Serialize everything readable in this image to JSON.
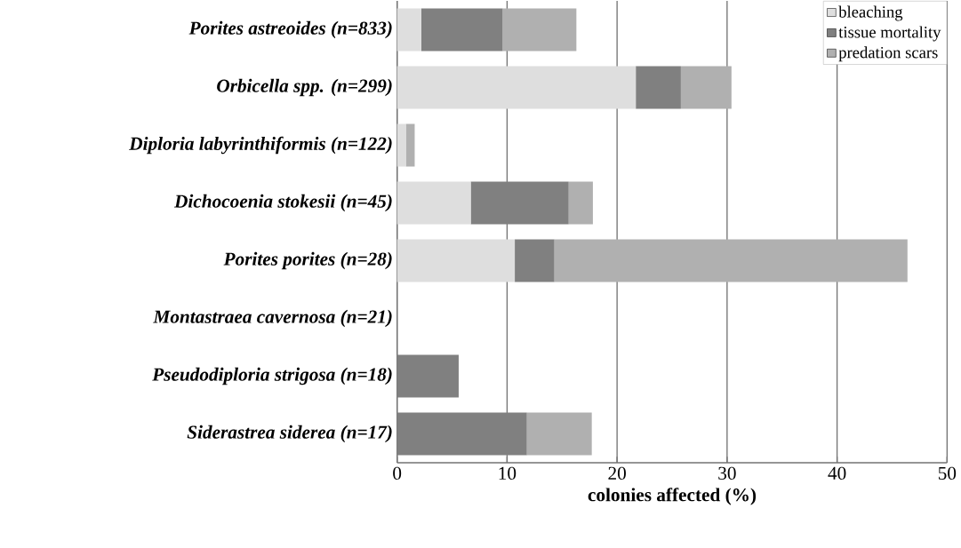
{
  "chart_data": {
    "type": "bar",
    "orientation": "horizontal",
    "stacked": true,
    "categories": [
      "Porites astreoides (n=833)",
      "Orbicella spp. (n=299)",
      "Diploria labyrinthiformis (n=122)",
      "Dichocoenia stokesii (n=45)",
      "Porites porites (n=28)",
      "Montastraea cavernosa (n=21)",
      "Pseudodiploria strigosa (n=18)",
      "Siderastrea siderea (n=17)"
    ],
    "series": [
      {
        "name": "bleaching",
        "color": "#dedede",
        "values": [
          2.2,
          21.7,
          0.8,
          6.7,
          10.7,
          0,
          0,
          0
        ]
      },
      {
        "name": "tissue mortality",
        "color": "#808080",
        "values": [
          7.4,
          4.1,
          0,
          8.9,
          3.6,
          0,
          5.6,
          11.8
        ]
      },
      {
        "name": "predation scars",
        "color": "#b0b0b0",
        "values": [
          6.7,
          4.6,
          0.8,
          2.2,
          32.1,
          0,
          0,
          5.9
        ]
      }
    ],
    "xlabel": "colonies affected (%)",
    "xlim": [
      0,
      50
    ],
    "xticks": [
      0,
      10,
      20,
      30,
      40,
      50
    ],
    "grid": "x",
    "legend": "top right"
  }
}
